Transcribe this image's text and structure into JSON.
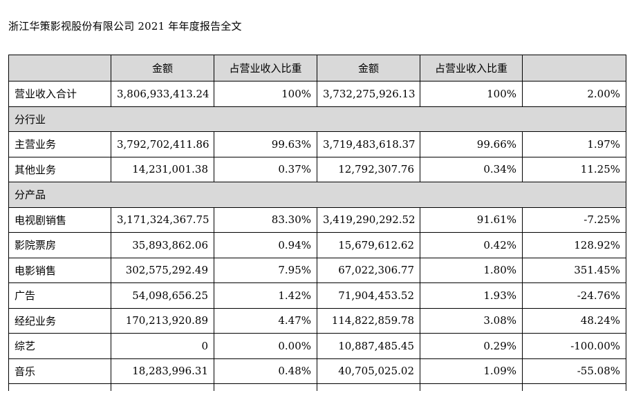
{
  "header": {
    "title": "浙江华策影视股份有限公司 2021 年年度报告全文"
  },
  "table": {
    "headers": [
      "",
      "金额",
      "占营业收入比重",
      "金额",
      "占营业收入比重",
      ""
    ],
    "total": {
      "label": "营业收入合计",
      "amount_2021": "3,806,933,413.24",
      "ratio_2021": "100%",
      "amount_2020": "3,732,275,926.13",
      "ratio_2020": "100%",
      "change": "2.00%"
    },
    "section_industry": "分行业",
    "industry_rows": [
      {
        "label": "主营业务",
        "amount_2021": "3,792,702,411.86",
        "ratio_2021": "99.63%",
        "amount_2020": "3,719,483,618.37",
        "ratio_2020": "99.66%",
        "change": "1.97%"
      },
      {
        "label": "其他业务",
        "amount_2021": "14,231,001.38",
        "ratio_2021": "0.37%",
        "amount_2020": "12,792,307.76",
        "ratio_2020": "0.34%",
        "change": "11.25%"
      }
    ],
    "section_product": "分产品",
    "product_rows": [
      {
        "label": "电视剧销售",
        "amount_2021": "3,171,324,367.75",
        "ratio_2021": "83.30%",
        "amount_2020": "3,419,290,292.52",
        "ratio_2020": "91.61%",
        "change": "-7.25%"
      },
      {
        "label": "影院票房",
        "amount_2021": "35,893,862.06",
        "ratio_2021": "0.94%",
        "amount_2020": "15,679,612.62",
        "ratio_2020": "0.42%",
        "change": "128.92%"
      },
      {
        "label": "电影销售",
        "amount_2021": "302,575,292.49",
        "ratio_2021": "7.95%",
        "amount_2020": "67,022,306.77",
        "ratio_2020": "1.80%",
        "change": "351.45%"
      },
      {
        "label": "广告",
        "amount_2021": "54,098,656.25",
        "ratio_2021": "1.42%",
        "amount_2020": "71,904,453.52",
        "ratio_2020": "1.93%",
        "change": "-24.76%"
      },
      {
        "label": "经纪业务",
        "amount_2021": "170,213,920.89",
        "ratio_2021": "4.47%",
        "amount_2020": "114,822,859.78",
        "ratio_2020": "3.08%",
        "change": "48.24%"
      },
      {
        "label": "综艺",
        "amount_2021": "0",
        "ratio_2021": "0.00%",
        "amount_2020": "10,887,485.45",
        "ratio_2020": "0.29%",
        "change": "-100.00%"
      },
      {
        "label": "音乐",
        "amount_2021": "18,283,996.31",
        "ratio_2021": "0.48%",
        "amount_2020": "40,705,025.02",
        "ratio_2020": "1.09%",
        "change": "-55.08%"
      }
    ]
  }
}
